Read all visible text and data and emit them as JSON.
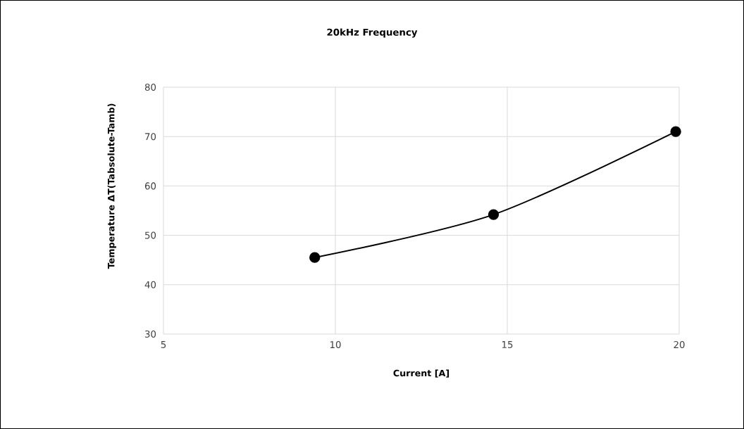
{
  "chart_data": {
    "type": "line",
    "title": "20kHz Frequency",
    "xlabel": "Current [A]",
    "ylabel": "Temperature ΔT(Tabsolute-Tamb)",
    "x": [
      9.4,
      14.6,
      19.9
    ],
    "series": [
      {
        "color": "#000000",
        "values": [
          45.5,
          54.2,
          71.0
        ]
      }
    ],
    "xlim": [
      5,
      20
    ],
    "xticks": [
      5,
      10,
      15,
      20
    ],
    "ylim": [
      30,
      80
    ],
    "yticks": [
      30,
      40,
      50,
      60,
      70,
      80
    ],
    "grid": true,
    "marker": "circle",
    "line_style": "solid"
  }
}
